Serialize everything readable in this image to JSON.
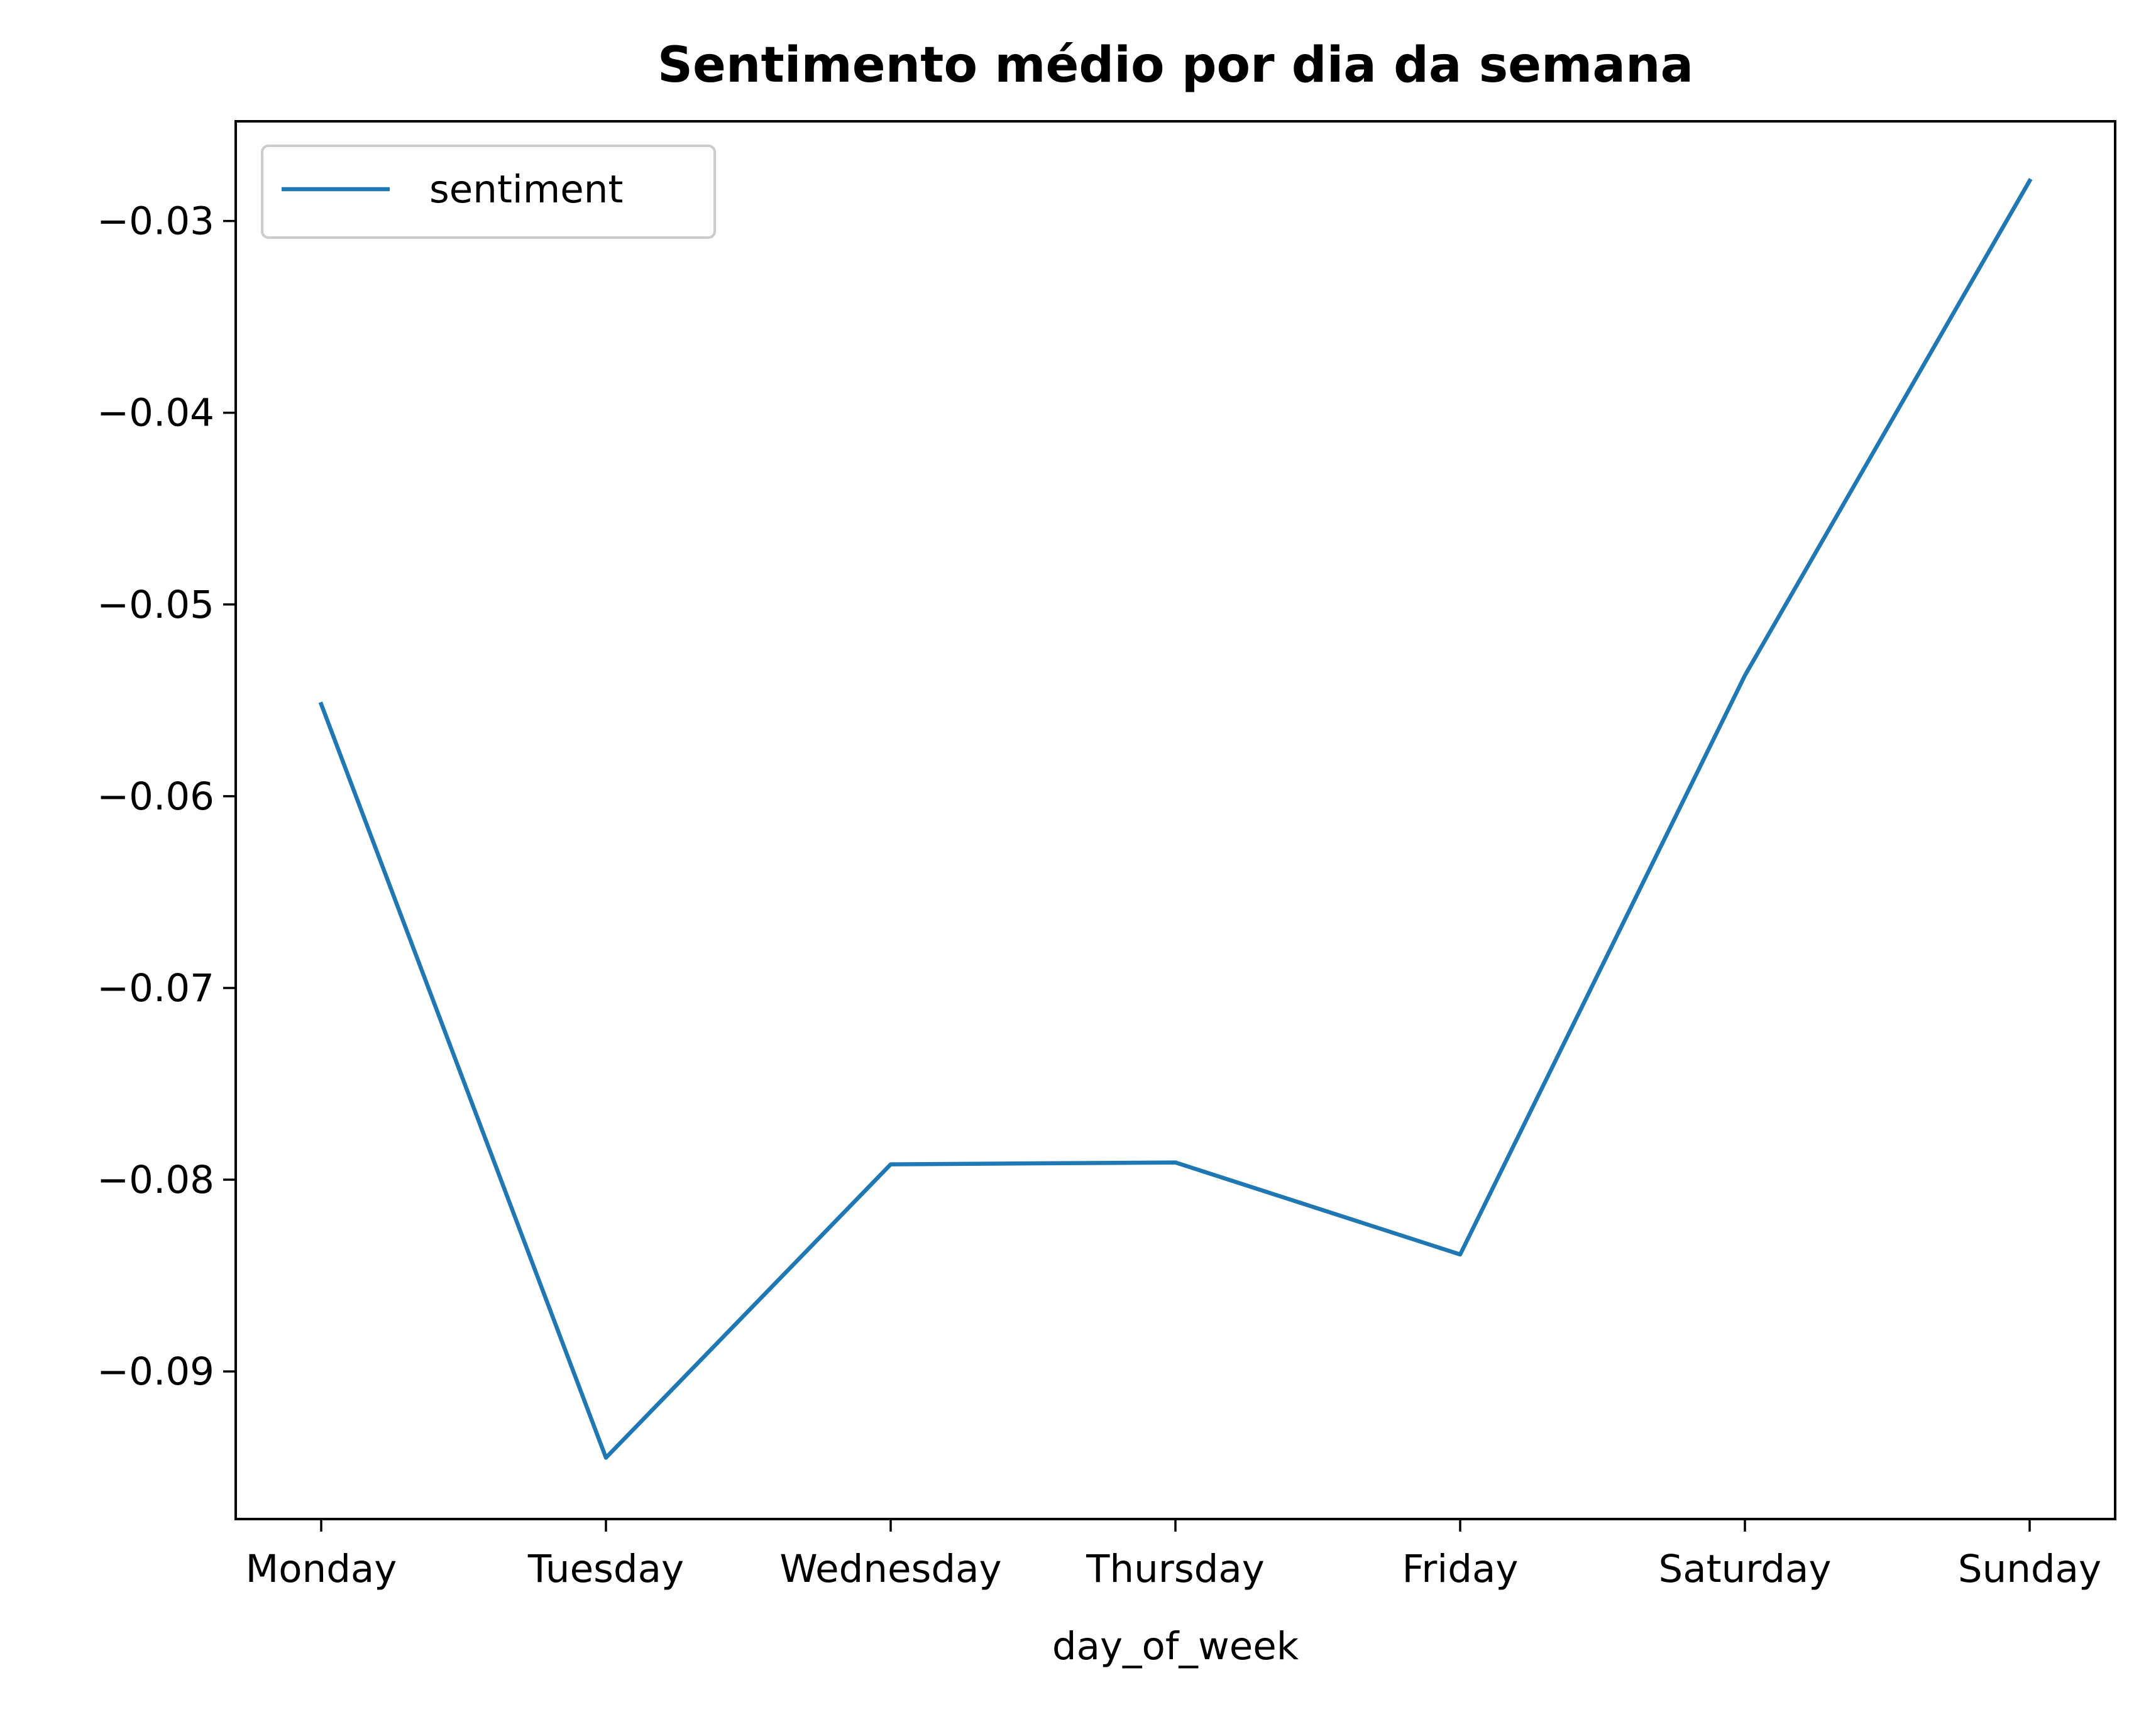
{
  "chart_data": {
    "type": "line",
    "title": "Sentimento médio por dia da semana",
    "xlabel": "day_of_week",
    "ylabel": "",
    "categories": [
      "Monday",
      "Tuesday",
      "Wednesday",
      "Thursday",
      "Friday",
      "Saturday",
      "Sunday"
    ],
    "series": [
      {
        "name": "sentiment",
        "color": "#1f77b4",
        "values": [
          -0.0552,
          -0.0945,
          -0.0792,
          -0.0791,
          -0.0839,
          -0.0537,
          -0.0279
        ]
      }
    ],
    "ylim": [
      -0.0977,
      -0.0248
    ],
    "yticks": [
      -0.03,
      -0.04,
      -0.05,
      -0.06,
      -0.07,
      -0.08,
      -0.09
    ],
    "ytick_labels": [
      "−0.03",
      "−0.04",
      "−0.05",
      "−0.06",
      "−0.07",
      "−0.08",
      "−0.09"
    ],
    "legend_position": "top-left",
    "grid": false
  }
}
